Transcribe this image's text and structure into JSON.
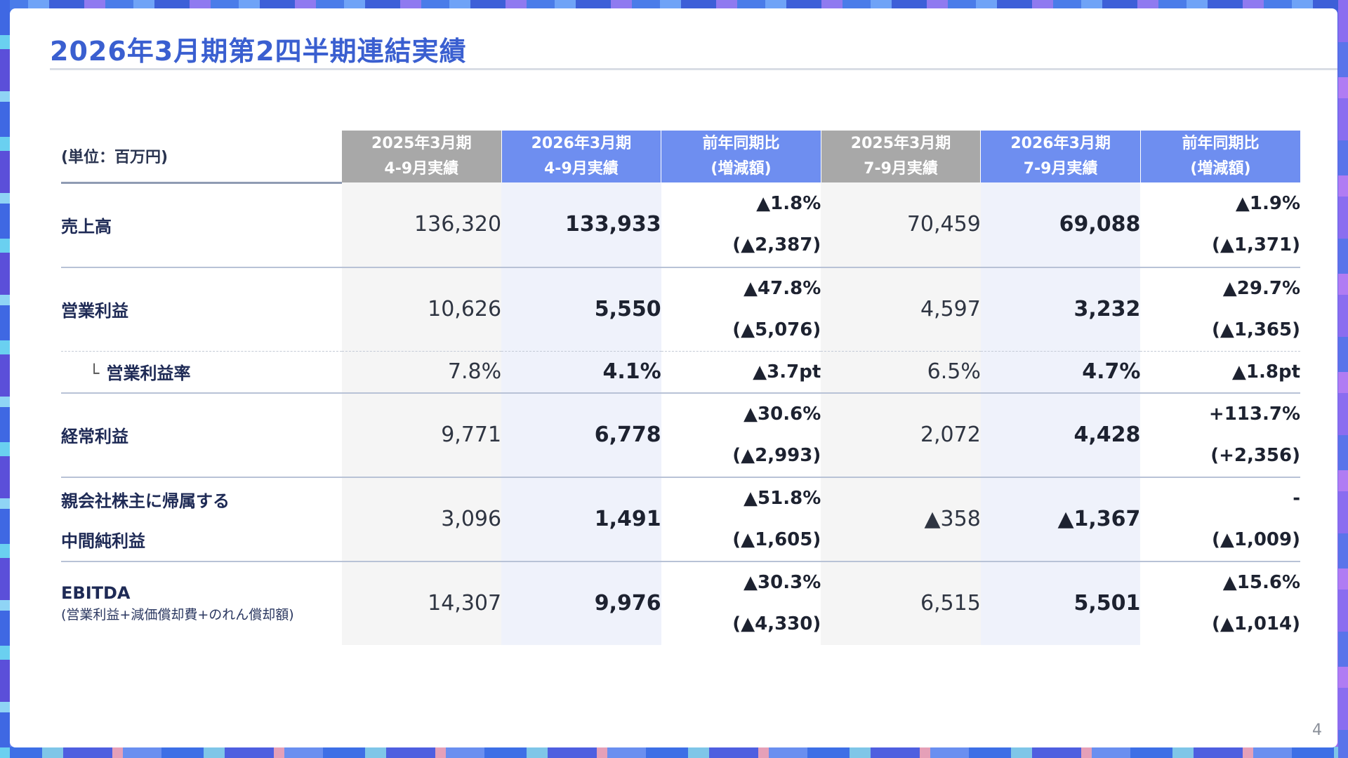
{
  "slide": {
    "title": "2026年3月期第2四半期連結実績",
    "page_number": "4",
    "brand_colors": {
      "accent": "#3a5fd0",
      "header_gray": "#a8a8a8",
      "header_blue": "#6e8ef0"
    }
  },
  "table": {
    "unit_label": "(単位：百万円)",
    "columns": [
      {
        "line1": "2025年3月期",
        "line2": "4-9月実績"
      },
      {
        "line1": "2026年3月期",
        "line2": "4-9月実績"
      },
      {
        "line1": "前年同期比",
        "line2": "(増減額)"
      },
      {
        "line1": "2025年3月期",
        "line2": "7-9月実績"
      },
      {
        "line1": "2026年3月期",
        "line2": "7-9月実績"
      },
      {
        "line1": "前年同期比",
        "line2": "(増減額)"
      }
    ],
    "rows": [
      {
        "label": "売上高",
        "h1_prev": "136,320",
        "h1_curr": "133,933",
        "h1_chg_pct": "▲1.8%",
        "h1_chg_amt": "(▲2,387)",
        "q2_prev": "70,459",
        "q2_curr": "69,088",
        "q2_chg_pct": "▲1.9%",
        "q2_chg_amt": "(▲1,371)"
      },
      {
        "label": "営業利益",
        "h1_prev": "10,626",
        "h1_curr": "5,550",
        "h1_chg_pct": "▲47.8%",
        "h1_chg_amt": "(▲5,076)",
        "q2_prev": "4,597",
        "q2_curr": "3,232",
        "q2_chg_pct": "▲29.7%",
        "q2_chg_amt": "(▲1,365)"
      },
      {
        "prefix": "└",
        "label": "営業利益率",
        "h1_prev": "7.8%",
        "h1_curr": "4.1%",
        "h1_chg": "▲3.7pt",
        "q2_prev": "6.5%",
        "q2_curr": "4.7%",
        "q2_chg": "▲1.8pt"
      },
      {
        "label": "経常利益",
        "h1_prev": "9,771",
        "h1_curr": "6,778",
        "h1_chg_pct": "▲30.6%",
        "h1_chg_amt": "(▲2,993)",
        "q2_prev": "2,072",
        "q2_curr": "4,428",
        "q2_chg_pct": "+113.7%",
        "q2_chg_amt": "(+2,356)"
      },
      {
        "label_line1": "親会社株主に帰属する",
        "label_line2": "中間純利益",
        "h1_prev": "3,096",
        "h1_curr": "1,491",
        "h1_chg_pct": "▲51.8%",
        "h1_chg_amt": "(▲1,605)",
        "q2_prev": "▲358",
        "q2_curr": "▲1,367",
        "q2_chg_pct": "-",
        "q2_chg_amt": "(▲1,009)"
      },
      {
        "label": "EBITDA",
        "sublabel": "(営業利益+減価償却費+のれん償却額)",
        "h1_prev": "14,307",
        "h1_curr": "9,976",
        "h1_chg_pct": "▲30.3%",
        "h1_chg_amt": "(▲4,330)",
        "q2_prev": "6,515",
        "q2_curr": "5,501",
        "q2_chg_pct": "▲15.6%",
        "q2_chg_amt": "(▲1,014)"
      }
    ]
  }
}
